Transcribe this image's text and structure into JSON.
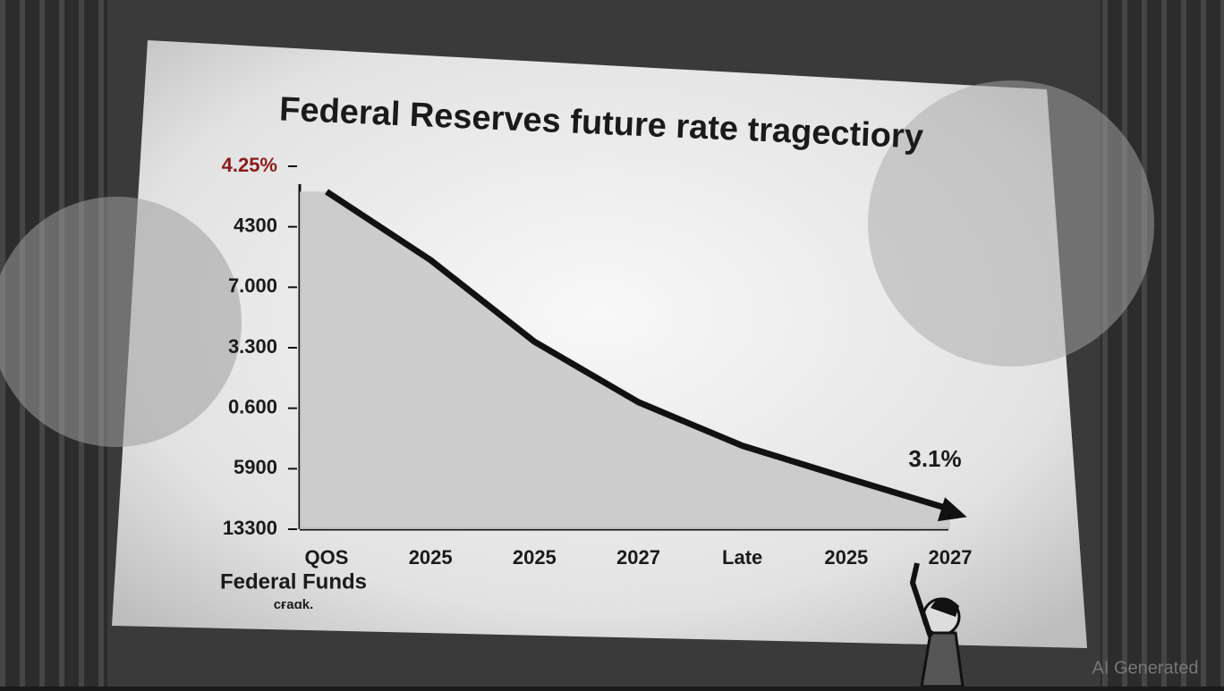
{
  "chart_data": {
    "type": "area",
    "title": "Federal Reserves future rate tragectiory",
    "x_label": "Federal Funds",
    "x_sublabel": "cғaɑk.",
    "categories": [
      "QOS",
      "2025",
      "2025",
      "2027",
      "Late",
      "2025",
      "2027"
    ],
    "series": [
      {
        "color": "#111111",
        "fill": "#c9c9c9",
        "values": [
          5.58,
          4.45,
          3.1,
          2.1,
          1.38,
          0.85,
          0.33
        ]
      }
    ],
    "ylim": [
      0,
      6
    ],
    "yticks": [
      {
        "value": 0,
        "label": "13300"
      },
      {
        "value": 1,
        "label": "5900"
      },
      {
        "value": 2,
        "label": "0.600"
      },
      {
        "value": 3,
        "label": "3.300"
      },
      {
        "value": 4,
        "label": "7.000"
      },
      {
        "value": 5,
        "label": "4300"
      },
      {
        "value": 6,
        "label": "4.25%"
      }
    ],
    "annotations": [
      "3.1%"
    ],
    "watermark": "AI Generated"
  }
}
